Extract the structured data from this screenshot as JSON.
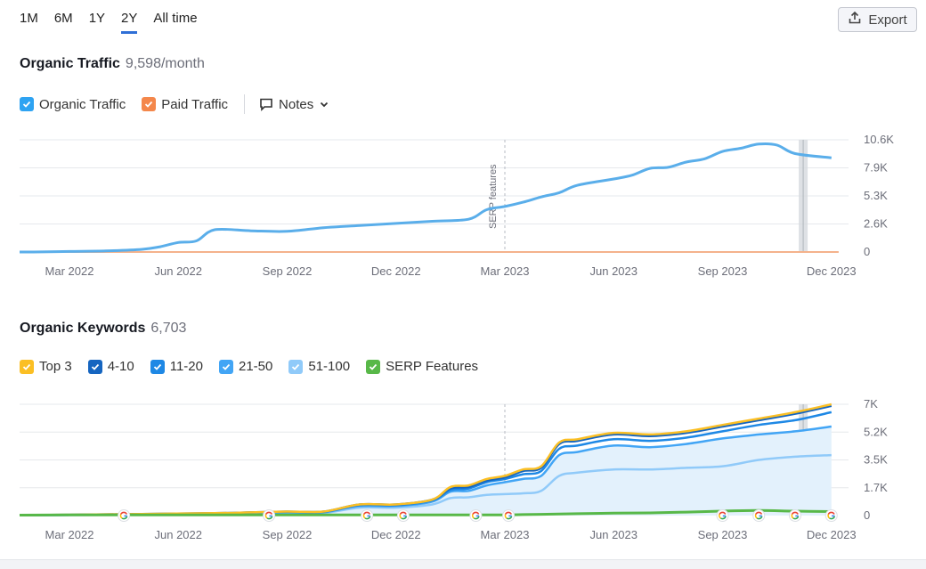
{
  "range_tabs": [
    "1M",
    "6M",
    "1Y",
    "2Y",
    "All time"
  ],
  "active_range": "2Y",
  "export_label": "Export",
  "traffic_section": {
    "title": "Organic Traffic",
    "value": "9,598/month"
  },
  "traffic_legend": [
    {
      "label": "Organic Traffic",
      "color": "#2ea3f2"
    },
    {
      "label": "Paid Traffic",
      "color": "#f4874b"
    }
  ],
  "notes_label": "Notes",
  "keywords_section": {
    "title": "Organic Keywords",
    "value": "6,703"
  },
  "keywords_legend": [
    {
      "label": "Top 3",
      "color": "#fbbf24"
    },
    {
      "label": "4-10",
      "color": "#1565c0"
    },
    {
      "label": "11-20",
      "color": "#1e88e5"
    },
    {
      "label": "21-50",
      "color": "#42a5f5"
    },
    {
      "label": "51-100",
      "color": "#90caf9"
    },
    {
      "label": "SERP Features",
      "color": "#4caf50"
    }
  ],
  "chart_data": [
    {
      "type": "line",
      "title": "Organic Traffic",
      "x_ticks": [
        "Mar 2022",
        "Jun 2022",
        "Sep 2022",
        "Dec 2022",
        "Mar 2023",
        "Jun 2023",
        "Sep 2023",
        "Dec 2023"
      ],
      "y_ticks": [
        "10.6K",
        "7.9K",
        "5.3K",
        "2.6K",
        "0"
      ],
      "ylim": [
        0,
        10600
      ],
      "xlim_months": [
        -2,
        21.2
      ],
      "annotation": {
        "label": "SERP features",
        "x": "Mar 2023"
      },
      "series": [
        {
          "name": "Organic Traffic",
          "color": "#5aaeea",
          "x": [
            -2,
            -1,
            0,
            1,
            2,
            2.5,
            3,
            3.5,
            4,
            5,
            6,
            7,
            8,
            9,
            10,
            11,
            11.5,
            12,
            12.5,
            13,
            13.5,
            14,
            15,
            15.5,
            16,
            16.5,
            17,
            17.5,
            18,
            18.5,
            19,
            19.5,
            20,
            21
          ],
          "y": [
            0,
            0,
            50,
            100,
            250,
            500,
            900,
            1050,
            2100,
            2000,
            1950,
            2300,
            2500,
            2700,
            2900,
            3100,
            4000,
            4300,
            4700,
            5200,
            5600,
            6300,
            6900,
            7250,
            7900,
            8000,
            8500,
            8800,
            9500,
            9800,
            10200,
            10100,
            9300,
            8900
          ]
        },
        {
          "name": "Paid Traffic",
          "color": "#f4b28c",
          "x": [
            -2,
            21.2
          ],
          "y": [
            0,
            0
          ]
        }
      ]
    },
    {
      "type": "area",
      "title": "Organic Keywords",
      "x_ticks": [
        "Mar 2022",
        "Jun 2022",
        "Sep 2022",
        "Dec 2022",
        "Mar 2023",
        "Jun 2023",
        "Sep 2023",
        "Dec 2023"
      ],
      "y_ticks": [
        "7K",
        "5.2K",
        "3.5K",
        "1.7K",
        "0"
      ],
      "ylim": [
        0,
        7000
      ],
      "xlim_months": [
        -2,
        21.2
      ],
      "x": [
        -2,
        0,
        2,
        4,
        5,
        6,
        7,
        8,
        9,
        10,
        10.5,
        11,
        11.5,
        12,
        12.5,
        13,
        13.5,
        14,
        15,
        16,
        17,
        18,
        19,
        20,
        21
      ],
      "series": [
        {
          "name": "Top 3",
          "color": "#fbbf24",
          "values": [
            30,
            50,
            100,
            150,
            200,
            250,
            250,
            700,
            700,
            1000,
            1800,
            1900,
            2300,
            2500,
            2900,
            3100,
            4600,
            4800,
            5200,
            5100,
            5300,
            5700,
            6100,
            6500,
            7000
          ]
        },
        {
          "name": "4-10",
          "color": "#1565c0",
          "values": [
            30,
            50,
            100,
            150,
            200,
            250,
            250,
            700,
            700,
            1000,
            1700,
            1800,
            2200,
            2400,
            2800,
            3000,
            4500,
            4700,
            5100,
            5000,
            5200,
            5600,
            6000,
            6400,
            6900
          ]
        },
        {
          "name": "11-20",
          "color": "#1e88e5",
          "values": [
            25,
            45,
            90,
            140,
            190,
            230,
            230,
            650,
            650,
            950,
            1600,
            1700,
            2100,
            2300,
            2600,
            2800,
            4200,
            4400,
            4800,
            4700,
            4900,
            5300,
            5700,
            6000,
            6500
          ]
        },
        {
          "name": "21-50",
          "color": "#42a5f5",
          "values": [
            20,
            40,
            80,
            120,
            170,
            210,
            210,
            600,
            600,
            880,
            1500,
            1550,
            1900,
            2100,
            2300,
            2500,
            3800,
            4000,
            4400,
            4300,
            4500,
            4850,
            5100,
            5300,
            5600
          ]
        },
        {
          "name": "51-100",
          "color": "#90caf9",
          "values": [
            15,
            30,
            60,
            90,
            130,
            160,
            160,
            500,
            500,
            700,
            1100,
            1150,
            1300,
            1350,
            1400,
            1550,
            2500,
            2700,
            2900,
            2900,
            3000,
            3100,
            3500,
            3700,
            3800
          ]
        },
        {
          "name": "SERP Features",
          "color": "#58b848",
          "values": [
            30,
            40,
            40,
            40,
            40,
            40,
            40,
            40,
            40,
            40,
            40,
            40,
            40,
            40,
            60,
            80,
            100,
            120,
            150,
            170,
            220,
            280,
            320,
            280,
            250
          ]
        }
      ],
      "google_markers_month": [
        1.5,
        5.5,
        8.2,
        9.2,
        11.2,
        12.1,
        18,
        19,
        20,
        21
      ]
    }
  ]
}
